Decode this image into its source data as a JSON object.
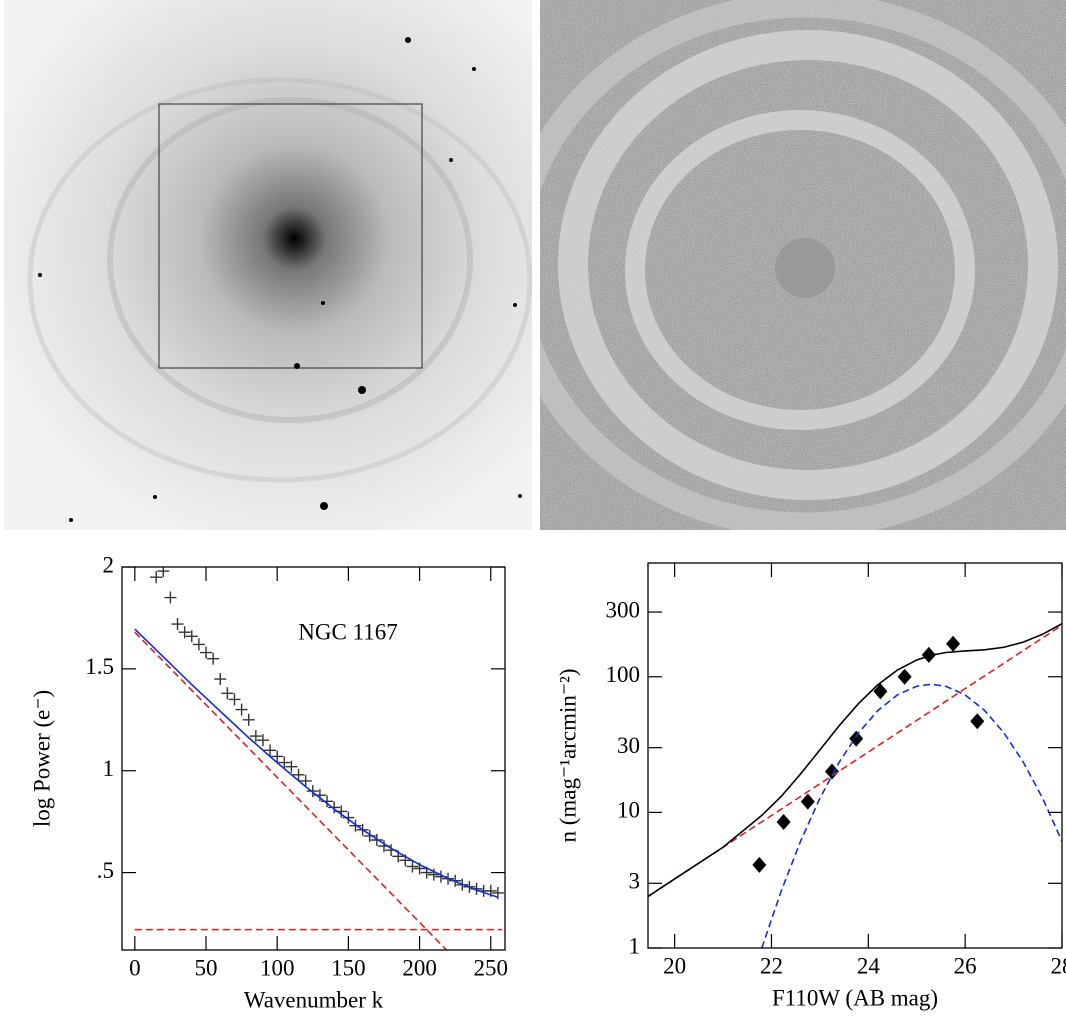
{
  "chart_data": [
    {
      "type": "scatter",
      "annotation": "NGC 1167",
      "xlabel": "Wavenumber k",
      "ylabel": "log Power (e⁻)",
      "xlim": [
        -9,
        260
      ],
      "ylim": [
        0.12,
        2
      ],
      "xticks": [
        0,
        50,
        100,
        150,
        200,
        250
      ],
      "yticks": [
        {
          "value": 0.5,
          "label": ".5"
        },
        1,
        1.5,
        2
      ],
      "series": [
        {
          "color": "#333333",
          "marker": "plus",
          "x": [
            15,
            20,
            25,
            30,
            35,
            40,
            45,
            50,
            55,
            60,
            65,
            70,
            75,
            80,
            85,
            90,
            95,
            100,
            105,
            110,
            115,
            120,
            125,
            130,
            135,
            140,
            145,
            150,
            155,
            160,
            165,
            170,
            175,
            180,
            185,
            190,
            195,
            200,
            205,
            210,
            215,
            220,
            225,
            230,
            235,
            240,
            245,
            250,
            255
          ],
          "values": [
            1.95,
            1.98,
            1.85,
            1.72,
            1.68,
            1.66,
            1.62,
            1.58,
            1.55,
            1.45,
            1.38,
            1.35,
            1.3,
            1.25,
            1.17,
            1.15,
            1.1,
            1.07,
            1.04,
            1.02,
            0.98,
            0.95,
            0.9,
            0.88,
            0.85,
            0.82,
            0.8,
            0.77,
            0.73,
            0.71,
            0.68,
            0.66,
            0.63,
            0.61,
            0.58,
            0.56,
            0.53,
            0.52,
            0.5,
            0.49,
            0.48,
            0.47,
            0.46,
            0.44,
            0.43,
            0.42,
            0.41,
            0.41,
            0.4
          ]
        },
        {
          "color": "#e02020",
          "dash": true,
          "x": [
            0,
            219
          ],
          "values": [
            1.68,
            0.12
          ]
        },
        {
          "color": "#e02020",
          "dash": true,
          "x": [
            0,
            258
          ],
          "values": [
            0.22,
            0.22
          ]
        },
        {
          "color": "#1030e0",
          "x": [
            0,
            20,
            40,
            60,
            80,
            100,
            120,
            140,
            160,
            180,
            200,
            220,
            240,
            255
          ],
          "values": [
            1.695,
            1.559,
            1.423,
            1.292,
            1.162,
            1.039,
            0.922,
            0.812,
            0.71,
            0.619,
            0.539,
            0.471,
            0.414,
            0.379
          ]
        }
      ]
    },
    {
      "type": "scatter",
      "xlabel": "F110W (AB mag)",
      "ylabel": "n (mag⁻¹arcmin⁻²)",
      "yscale": "log",
      "xlim": [
        19.45,
        28
      ],
      "ylim": [
        1,
        690
      ],
      "xticks": [
        20,
        22,
        24,
        26,
        28
      ],
      "yticks": [
        1,
        3,
        10,
        30,
        100,
        300
      ],
      "series": [
        {
          "color": "#000000",
          "marker": "diamond",
          "x": [
            21.75,
            22.25,
            22.75,
            23.25,
            23.75,
            24.25,
            24.75,
            25.25,
            25.75,
            26.25
          ],
          "values": [
            4.1,
            8.5,
            12,
            20,
            35,
            78,
            100,
            145,
            175,
            47
          ]
        },
        {
          "color": "#e02020",
          "dash": true,
          "x": [
            19.45,
            28
          ],
          "values": [
            2.4,
            240
          ]
        },
        {
          "color": "#1030e0",
          "dash": true,
          "x": [
            21.8,
            22.2,
            22.6,
            23.0,
            23.4,
            23.8,
            24.2,
            24.6,
            25.0,
            25.3,
            25.6,
            26.0,
            26.4,
            26.8,
            27.2,
            27.6,
            28.0
          ],
          "values": [
            1.0,
            2.62,
            6.12,
            12.7,
            23.5,
            38.6,
            56.5,
            73.5,
            85.1,
            88,
            85.1,
            73.5,
            56.5,
            38.6,
            23.5,
            12.7,
            6.12
          ]
        },
        {
          "color": "#000000",
          "x": [
            19.45,
            20,
            21,
            21.8,
            22.2,
            22.6,
            23.0,
            23.4,
            23.8,
            24.2,
            24.6,
            25.0,
            25.3,
            25.6,
            26.0,
            26.4,
            26.8,
            27.2,
            27.6,
            28
          ],
          "values": [
            2.4,
            3.23,
            5.53,
            9.5,
            13.1,
            19.2,
            28.9,
            43.6,
            63.6,
            87.5,
            112,
            133,
            144,
            151,
            155,
            158,
            165,
            180,
            206,
            246
          ]
        }
      ]
    }
  ]
}
